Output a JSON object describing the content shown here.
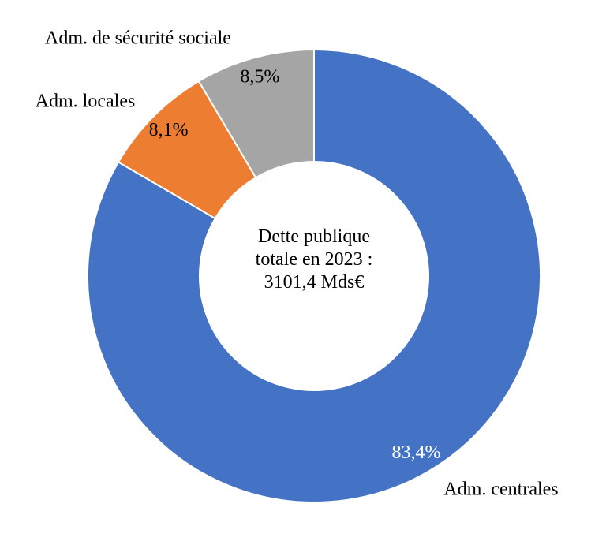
{
  "chart_data": {
    "type": "donut",
    "center_text": "Dette publique totale en 2023 : 3101,4 Mds€",
    "categories": [
      "Adm. centrales",
      "Adm. locales",
      "Adm. de sécurité sociale"
    ],
    "values": [
      83.4,
      8.1,
      8.5
    ],
    "value_labels": [
      "83,4%",
      "8,1%",
      "8,5%"
    ],
    "colors": [
      "#4472c4",
      "#ed7d31",
      "#a5a5a5"
    ]
  }
}
